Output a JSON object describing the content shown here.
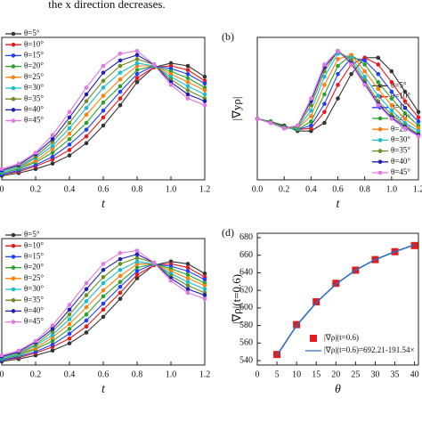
{
  "caption": "the x direction decreases.",
  "chart_data": [
    {
      "type": "line",
      "xlabel": "t",
      "x": [
        0,
        0.1,
        0.2,
        0.3,
        0.4,
        0.5,
        0.6,
        0.7,
        0.8,
        0.9,
        1.0,
        1.1,
        1.2
      ],
      "xlim": [
        0,
        1.2
      ],
      "xticks": [
        0,
        0.2,
        0.4,
        0.6,
        0.8,
        {
          "value": 1,
          "label": "1.0"
        },
        1.2
      ],
      "ylim": [
        0,
        1.05
      ],
      "legend": "upper left",
      "series": [
        {
          "name": "θ=5°",
          "color": "#333333",
          "values": [
            0.03,
            0.05,
            0.08,
            0.12,
            0.18,
            0.27,
            0.4,
            0.55,
            0.72,
            0.83,
            0.86,
            0.84,
            0.76
          ]
        },
        {
          "name": "θ=10°",
          "color": "#e41a1c",
          "values": [
            0.04,
            0.06,
            0.1,
            0.15,
            0.22,
            0.32,
            0.46,
            0.6,
            0.75,
            0.83,
            0.84,
            0.81,
            0.73
          ]
        },
        {
          "name": "θ=15°",
          "color": "#1f3fff",
          "values": [
            0.04,
            0.07,
            0.11,
            0.17,
            0.26,
            0.37,
            0.51,
            0.65,
            0.78,
            0.84,
            0.82,
            0.78,
            0.71
          ]
        },
        {
          "name": "θ=20°",
          "color": "#2ca02c",
          "values": [
            0.05,
            0.08,
            0.13,
            0.2,
            0.3,
            0.42,
            0.57,
            0.69,
            0.81,
            0.84,
            0.8,
            0.75,
            0.68
          ]
        },
        {
          "name": "θ=25°",
          "color": "#ff7f0e",
          "values": [
            0.06,
            0.09,
            0.14,
            0.23,
            0.34,
            0.48,
            0.62,
            0.74,
            0.84,
            0.84,
            0.78,
            0.72,
            0.66
          ]
        },
        {
          "name": "θ=30°",
          "color": "#17becf",
          "values": [
            0.06,
            0.09,
            0.16,
            0.25,
            0.38,
            0.53,
            0.68,
            0.79,
            0.86,
            0.84,
            0.76,
            0.69,
            0.63
          ]
        },
        {
          "name": "θ=35°",
          "color": "#6b8e23",
          "values": [
            0.07,
            0.1,
            0.17,
            0.28,
            0.42,
            0.58,
            0.73,
            0.84,
            0.89,
            0.85,
            0.74,
            0.66,
            0.6
          ]
        },
        {
          "name": "θ=40°",
          "color": "#1f1fb4",
          "values": [
            0.07,
            0.11,
            0.19,
            0.3,
            0.46,
            0.63,
            0.79,
            0.88,
            0.92,
            0.85,
            0.72,
            0.63,
            0.58
          ]
        },
        {
          "name": "θ=45°",
          "color": "#e377e3",
          "values": [
            0.08,
            0.12,
            0.2,
            0.33,
            0.5,
            0.68,
            0.84,
            0.93,
            0.95,
            0.85,
            0.7,
            0.6,
            0.55
          ]
        }
      ]
    },
    {
      "type": "line",
      "label": "(b)",
      "xlabel": "t",
      "ylabel": "|∇yρ|",
      "x": [
        0,
        0.1,
        0.2,
        0.3,
        0.4,
        0.5,
        0.6,
        0.7,
        0.8,
        0.9,
        1.0,
        1.1,
        1.2
      ],
      "xlim": [
        0,
        1.2
      ],
      "xticks": [
        {
          "value": 0,
          "label": "0.0"
        },
        0.2,
        0.4,
        0.6,
        0.8,
        {
          "value": 1,
          "label": "1.0"
        },
        1.2
      ],
      "ylim": [
        0,
        1.05
      ],
      "legend": "right",
      "series": [
        {
          "name": "θ=5°",
          "color": "#333333",
          "values": [
            0.45,
            0.43,
            0.4,
            0.36,
            0.36,
            0.42,
            0.6,
            0.78,
            0.9,
            0.9,
            0.8,
            0.65,
            0.5
          ]
        },
        {
          "name": "θ=10°",
          "color": "#e41a1c",
          "values": [
            0.45,
            0.43,
            0.39,
            0.37,
            0.38,
            0.5,
            0.7,
            0.85,
            0.9,
            0.85,
            0.72,
            0.58,
            0.46
          ]
        },
        {
          "name": "θ=15°",
          "color": "#1f3fff",
          "values": [
            0.45,
            0.43,
            0.39,
            0.37,
            0.4,
            0.56,
            0.78,
            0.9,
            0.88,
            0.78,
            0.65,
            0.53,
            0.43
          ]
        },
        {
          "name": "θ=20°",
          "color": "#2ca02c",
          "values": [
            0.45,
            0.43,
            0.39,
            0.37,
            0.43,
            0.63,
            0.84,
            0.92,
            0.85,
            0.72,
            0.6,
            0.49,
            0.4
          ]
        },
        {
          "name": "θ=25°",
          "color": "#ff7f0e",
          "values": [
            0.45,
            0.42,
            0.38,
            0.38,
            0.47,
            0.7,
            0.89,
            0.92,
            0.8,
            0.67,
            0.55,
            0.45,
            0.38
          ]
        },
        {
          "name": "θ=30°",
          "color": "#17becf",
          "values": [
            0.45,
            0.42,
            0.38,
            0.38,
            0.51,
            0.76,
            0.93,
            0.9,
            0.76,
            0.62,
            0.51,
            0.42,
            0.36
          ]
        },
        {
          "name": "θ=35°",
          "color": "#6b8e23",
          "values": [
            0.45,
            0.42,
            0.38,
            0.39,
            0.55,
            0.8,
            0.95,
            0.88,
            0.73,
            0.58,
            0.48,
            0.4,
            0.34
          ]
        },
        {
          "name": "θ=40°",
          "color": "#1f1fb4",
          "values": [
            0.45,
            0.42,
            0.38,
            0.4,
            0.58,
            0.83,
            0.95,
            0.86,
            0.71,
            0.56,
            0.46,
            0.39,
            0.33
          ]
        },
        {
          "name": "θ=45°",
          "color": "#e377e3",
          "values": [
            0.45,
            0.42,
            0.38,
            0.4,
            0.6,
            0.85,
            0.95,
            0.85,
            0.7,
            0.55,
            0.45,
            0.38,
            0.32
          ]
        }
      ]
    },
    {
      "type": "line",
      "xlabel": "t",
      "x": [
        0,
        0.1,
        0.2,
        0.3,
        0.4,
        0.5,
        0.6,
        0.7,
        0.8,
        0.9,
        1.0,
        1.1,
        1.2
      ],
      "xlim": [
        0,
        1.2
      ],
      "xticks": [
        0,
        0.2,
        0.4,
        0.6,
        0.8,
        {
          "value": 1,
          "label": "1.0"
        },
        1.2
      ],
      "ylim": [
        0,
        1.05
      ],
      "legend": "upper left",
      "series": [
        {
          "name": "θ=5°",
          "color": "#333333",
          "values": [
            0.03,
            0.05,
            0.08,
            0.12,
            0.18,
            0.27,
            0.4,
            0.55,
            0.72,
            0.83,
            0.86,
            0.84,
            0.76
          ]
        },
        {
          "name": "θ=10°",
          "color": "#e41a1c",
          "values": [
            0.04,
            0.06,
            0.1,
            0.15,
            0.22,
            0.32,
            0.46,
            0.6,
            0.75,
            0.83,
            0.84,
            0.81,
            0.73
          ]
        },
        {
          "name": "θ=15°",
          "color": "#1f3fff",
          "values": [
            0.04,
            0.07,
            0.11,
            0.17,
            0.26,
            0.37,
            0.51,
            0.65,
            0.78,
            0.84,
            0.82,
            0.78,
            0.71
          ]
        },
        {
          "name": "θ=20°",
          "color": "#2ca02c",
          "values": [
            0.05,
            0.08,
            0.13,
            0.2,
            0.3,
            0.42,
            0.57,
            0.69,
            0.81,
            0.84,
            0.8,
            0.75,
            0.68
          ]
        },
        {
          "name": "θ=25°",
          "color": "#ff7f0e",
          "values": [
            0.06,
            0.09,
            0.14,
            0.23,
            0.34,
            0.48,
            0.62,
            0.74,
            0.84,
            0.84,
            0.78,
            0.72,
            0.66
          ]
        },
        {
          "name": "θ=30°",
          "color": "#17becf",
          "values": [
            0.06,
            0.09,
            0.16,
            0.25,
            0.38,
            0.53,
            0.68,
            0.79,
            0.86,
            0.84,
            0.76,
            0.69,
            0.63
          ]
        },
        {
          "name": "θ=35°",
          "color": "#6b8e23",
          "values": [
            0.07,
            0.1,
            0.17,
            0.28,
            0.42,
            0.58,
            0.73,
            0.84,
            0.89,
            0.85,
            0.74,
            0.66,
            0.6
          ]
        },
        {
          "name": "θ=40°",
          "color": "#1f1fb4",
          "values": [
            0.07,
            0.11,
            0.19,
            0.3,
            0.46,
            0.63,
            0.79,
            0.88,
            0.92,
            0.85,
            0.72,
            0.63,
            0.58
          ]
        },
        {
          "name": "θ=45°",
          "color": "#e377e3",
          "values": [
            0.08,
            0.12,
            0.2,
            0.33,
            0.5,
            0.68,
            0.84,
            0.93,
            0.95,
            0.85,
            0.7,
            0.6,
            0.55
          ]
        }
      ]
    },
    {
      "type": "scatter",
      "label": "(d)",
      "xlabel": "θ",
      "ylabel": "|∇ρ|(t=0.6)",
      "x": [
        5,
        10,
        15,
        20,
        25,
        30,
        35,
        40
      ],
      "xlim": [
        0,
        41
      ],
      "xticks": [
        0,
        5,
        10,
        15,
        20,
        25,
        30,
        35,
        40
      ],
      "ylim": [
        535,
        685
      ],
      "yticks": [
        540,
        560,
        580,
        600,
        620,
        640,
        660,
        680
      ],
      "legend": "lower center",
      "series": [
        {
          "name": "|∇ρ|(t=0.6)",
          "color": "#e41a1c",
          "mode": "markers",
          "values": [
            547,
            581,
            607,
            628,
            643,
            655,
            664,
            671
          ]
        },
        {
          "name": "|∇ρ|(t=0.6)=692.21-191.54×",
          "color": "#2a6fbf",
          "mode": "line",
          "values": [
            546,
            580,
            606,
            627,
            643,
            655,
            664,
            672
          ]
        }
      ]
    }
  ]
}
